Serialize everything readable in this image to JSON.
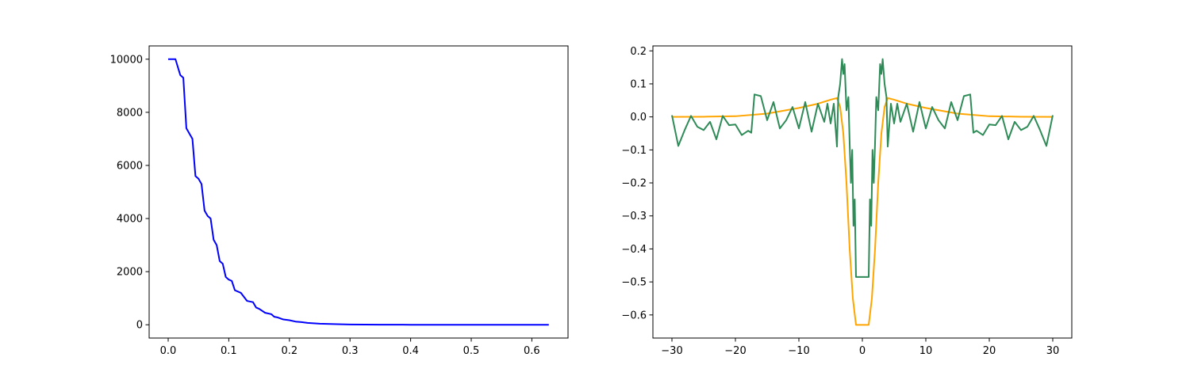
{
  "chart_data": [
    {
      "type": "line",
      "xlim": [
        -0.0314,
        0.6597
      ],
      "ylim": [
        -500,
        10500
      ],
      "xticks": [
        {
          "value": 0,
          "label": "0.0"
        },
        0.1,
        0.2,
        0.3,
        0.4,
        0.5,
        0.6
      ],
      "yticks": [
        0,
        2000,
        4000,
        6000,
        8000,
        10000
      ],
      "series": [
        {
          "color": "#0000ff",
          "x": [
            0,
            0.012,
            0.02,
            0.025,
            0.03,
            0.035,
            0.04,
            0.045,
            0.05,
            0.055,
            0.06,
            0.065,
            0.07,
            0.075,
            0.08,
            0.085,
            0.09,
            0.095,
            0.1,
            0.105,
            0.11,
            0.12,
            0.13,
            0.14,
            0.145,
            0.15,
            0.16,
            0.17,
            0.175,
            0.18,
            0.19,
            0.2,
            0.21,
            0.22,
            0.23,
            0.25,
            0.28,
            0.3,
            0.35,
            0.4,
            0.5,
            0.628
          ],
          "values": [
            10000,
            10000,
            9400,
            9300,
            7400,
            7200,
            7000,
            5600,
            5500,
            5300,
            4300,
            4100,
            4000,
            3200,
            3000,
            2400,
            2300,
            1800,
            1700,
            1650,
            1300,
            1200,
            900,
            850,
            650,
            600,
            450,
            400,
            300,
            280,
            200,
            170,
            120,
            100,
            70,
            40,
            20,
            10,
            3,
            1,
            0,
            0
          ]
        }
      ]
    },
    {
      "type": "line",
      "xlim": [
        -33,
        33
      ],
      "ylim": [
        -0.67,
        0.215
      ],
      "xticks": [
        -30,
        -20,
        -10,
        0,
        10,
        20,
        30
      ],
      "yticks": [
        0.2,
        0.1,
        {
          "value": 0,
          "label": "0.0"
        },
        -0.1,
        -0.2,
        -0.3,
        -0.4,
        -0.5,
        -0.6
      ],
      "series": [
        {
          "color": "#ffa500",
          "x": [
            -30,
            -25,
            -20,
            -15,
            -10,
            -7,
            -5,
            -4,
            -3.5,
            -3,
            -2.5,
            -2,
            -1.5,
            -1,
            1,
            1.5,
            2,
            2.5,
            3,
            3.5,
            4,
            5,
            7,
            10,
            15,
            20,
            25,
            30
          ],
          "values": [
            0,
            0.0005,
            0.002,
            0.01,
            0.027,
            0.04,
            0.052,
            0.057,
            0.03,
            -0.05,
            -0.2,
            -0.4,
            -0.55,
            -0.63,
            -0.63,
            -0.55,
            -0.4,
            -0.2,
            -0.05,
            0.03,
            0.057,
            0.052,
            0.04,
            0.027,
            0.01,
            0.002,
            0.0005,
            0
          ]
        },
        {
          "color": "#2e8b57",
          "x": [
            -30,
            -29,
            -28,
            -27,
            -26,
            -25,
            -24,
            -23,
            -22,
            -21,
            -20,
            -19,
            -18,
            -17.5,
            -17,
            -16,
            -15,
            -14,
            -13,
            -12,
            -11,
            -10,
            -9,
            -8,
            -7,
            -6,
            -5.5,
            -5,
            -4.5,
            -4,
            -3.8,
            -3.5,
            -3.2,
            -3,
            -2.8,
            -2.5,
            -2.2,
            -2,
            -1.8,
            -1.6,
            -1.4,
            -1.2,
            -1,
            1,
            1.2,
            1.4,
            1.6,
            1.8,
            2,
            2.2,
            2.5,
            2.8,
            3,
            3.2,
            3.5,
            3.8,
            4,
            4.5,
            5,
            5.5,
            6,
            7,
            8,
            9,
            10,
            11,
            12,
            13,
            14,
            15,
            16,
            17,
            17.5,
            18,
            19,
            20,
            21,
            22,
            23,
            24,
            25,
            26,
            27,
            28,
            29,
            30
          ],
          "values": [
            0.005,
            -0.088,
            -0.04,
            0.003,
            -0.03,
            -0.04,
            -0.015,
            -0.068,
            0.003,
            -0.025,
            -0.023,
            -0.055,
            -0.042,
            -0.048,
            0.068,
            0.063,
            -0.01,
            0.045,
            -0.035,
            -0.01,
            0.03,
            -0.035,
            0.045,
            -0.045,
            0.04,
            -0.015,
            0.04,
            -0.02,
            0.04,
            -0.09,
            0.06,
            0.1,
            0.175,
            0.13,
            0.16,
            0.02,
            0.06,
            -0.08,
            -0.2,
            -0.1,
            -0.33,
            -0.25,
            -0.485,
            -0.485,
            -0.25,
            -0.33,
            -0.1,
            -0.2,
            -0.08,
            0.06,
            0.02,
            0.16,
            0.13,
            0.175,
            0.1,
            0.06,
            -0.09,
            0.04,
            -0.02,
            0.04,
            -0.015,
            0.04,
            -0.045,
            0.045,
            -0.035,
            0.03,
            -0.01,
            -0.035,
            0.045,
            -0.01,
            0.063,
            0.068,
            -0.048,
            -0.042,
            -0.055,
            -0.023,
            -0.025,
            0.003,
            -0.068,
            -0.015,
            -0.04,
            -0.03,
            0.003,
            -0.04,
            -0.088,
            0.005
          ]
        }
      ]
    }
  ]
}
